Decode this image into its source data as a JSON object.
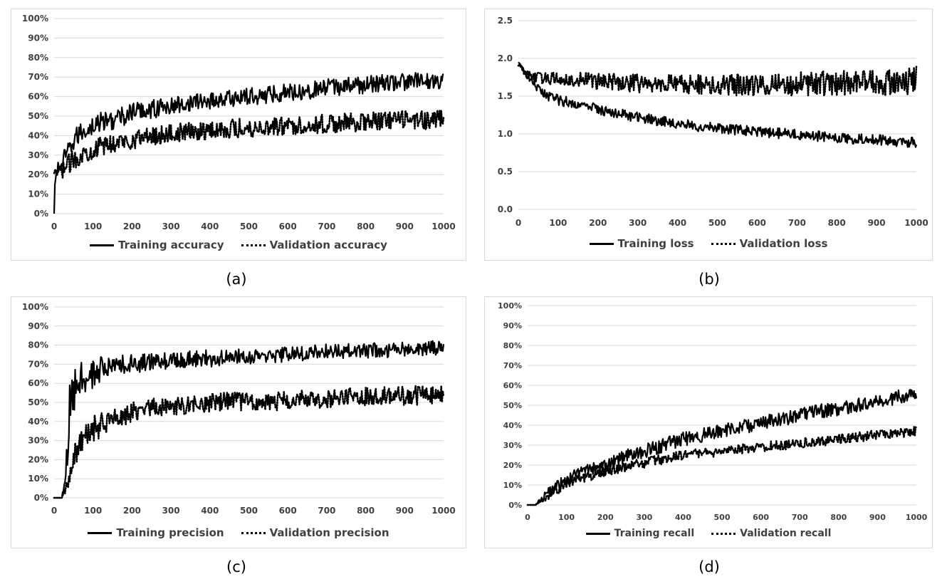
{
  "colors": {
    "line": "#000000",
    "grid": "#d9d9d9",
    "text": "#404040",
    "border": "#d9d9d9"
  },
  "panels": [
    {
      "id": "a",
      "caption": "(a)",
      "legend": {
        "train": "Training accuracy",
        "val": "Validation accuracy"
      },
      "y_tick_labels": [
        "0%",
        "10%",
        "20%",
        "30%",
        "40%",
        "50%",
        "60%",
        "70%",
        "80%",
        "90%",
        "100%"
      ],
      "x_tick_labels": [
        "0",
        "100",
        "200",
        "300",
        "400",
        "500",
        "600",
        "700",
        "800",
        "900",
        "1000"
      ]
    },
    {
      "id": "b",
      "caption": "(b)",
      "legend": {
        "train": "Training loss",
        "val": "Validation loss"
      },
      "y_tick_labels": [
        "0.0",
        "0.5",
        "1.0",
        "1.5",
        "2.0",
        "2.5"
      ],
      "x_tick_labels": [
        "0",
        "100",
        "200",
        "300",
        "400",
        "500",
        "600",
        "700",
        "800",
        "900",
        "1000"
      ]
    },
    {
      "id": "c",
      "caption": "(c)",
      "legend": {
        "train": "Training precision",
        "val": "Validation precision"
      },
      "y_tick_labels": [
        "0%",
        "10%",
        "20%",
        "30%",
        "40%",
        "50%",
        "60%",
        "70%",
        "80%",
        "90%",
        "100%"
      ],
      "x_tick_labels": [
        "0",
        "100",
        "200",
        "300",
        "400",
        "500",
        "600",
        "700",
        "800",
        "900",
        "1000"
      ]
    },
    {
      "id": "d",
      "caption": "(d)",
      "legend": {
        "train": "Training recall",
        "val": "Validation recall"
      },
      "y_tick_labels": [
        "0%",
        "10%",
        "20%",
        "30%",
        "40%",
        "50%",
        "60%",
        "70%",
        "80%",
        "90%",
        "100%"
      ],
      "x_tick_labels": [
        "0",
        "100",
        "200",
        "300",
        "400",
        "500",
        "600",
        "700",
        "800",
        "900",
        "1000"
      ]
    }
  ],
  "chart_data": [
    {
      "type": "line",
      "xlim": [
        0,
        1000
      ],
      "ylim": [
        0,
        1
      ],
      "grid": true,
      "legend_position": "bottom",
      "series": [
        {
          "name": "Training accuracy",
          "style": "solid",
          "x": [
            0,
            2,
            5,
            10,
            20,
            30,
            40,
            50,
            60,
            80,
            100,
            120,
            150,
            180,
            200,
            230,
            260,
            300,
            350,
            400,
            450,
            500,
            550,
            600,
            650,
            700,
            750,
            800,
            850,
            900,
            950,
            1000
          ],
          "y": [
            0.0,
            0.15,
            0.21,
            0.23,
            0.26,
            0.29,
            0.33,
            0.37,
            0.4,
            0.43,
            0.45,
            0.47,
            0.48,
            0.5,
            0.52,
            0.53,
            0.54,
            0.55,
            0.57,
            0.58,
            0.59,
            0.6,
            0.61,
            0.625,
            0.63,
            0.645,
            0.655,
            0.66,
            0.67,
            0.675,
            0.68,
            0.685
          ],
          "noise": [
            0,
            0,
            0.03,
            0.04,
            0.05,
            0.05,
            0.05,
            0.05,
            0.05,
            0.05,
            0.05,
            0.05,
            0.05,
            0.05,
            0.05,
            0.05,
            0.05,
            0.045,
            0.045,
            0.045,
            0.045,
            0.045,
            0.045,
            0.045,
            0.045,
            0.045,
            0.045,
            0.045,
            0.045,
            0.045,
            0.045,
            0.045
          ]
        },
        {
          "name": "Validation accuracy",
          "style": "dotted",
          "x": [
            0,
            10,
            20,
            40,
            60,
            100,
            150,
            200,
            250,
            300,
            350,
            400,
            450,
            500,
            550,
            600,
            650,
            700,
            750,
            800,
            850,
            900,
            950,
            1000
          ],
          "y": [
            0.2,
            0.21,
            0.22,
            0.26,
            0.29,
            0.33,
            0.36,
            0.38,
            0.4,
            0.41,
            0.42,
            0.43,
            0.435,
            0.44,
            0.445,
            0.45,
            0.455,
            0.46,
            0.465,
            0.47,
            0.475,
            0.48,
            0.48,
            0.485
          ],
          "noise": [
            0.02,
            0.03,
            0.04,
            0.05,
            0.05,
            0.05,
            0.05,
            0.05,
            0.05,
            0.05,
            0.05,
            0.05,
            0.05,
            0.05,
            0.05,
            0.05,
            0.05,
            0.05,
            0.05,
            0.05,
            0.05,
            0.05,
            0.05,
            0.05
          ]
        }
      ]
    },
    {
      "type": "line",
      "xlim": [
        0,
        1000
      ],
      "ylim": [
        0,
        2.5
      ],
      "grid": true,
      "legend_position": "bottom",
      "series": [
        {
          "name": "Training loss",
          "style": "solid",
          "x": [
            0,
            10,
            20,
            40,
            60,
            80,
            100,
            150,
            200,
            250,
            300,
            350,
            400,
            450,
            500,
            550,
            600,
            650,
            700,
            750,
            800,
            850,
            900,
            950,
            1000
          ],
          "y": [
            1.95,
            1.88,
            1.78,
            1.64,
            1.55,
            1.49,
            1.45,
            1.39,
            1.33,
            1.27,
            1.22,
            1.18,
            1.14,
            1.1,
            1.07,
            1.05,
            1.03,
            1.01,
            0.99,
            0.97,
            0.95,
            0.93,
            0.92,
            0.9,
            0.89
          ],
          "noise": [
            0,
            0.02,
            0.04,
            0.06,
            0.07,
            0.07,
            0.07,
            0.07,
            0.07,
            0.07,
            0.07,
            0.07,
            0.07,
            0.07,
            0.07,
            0.07,
            0.07,
            0.07,
            0.07,
            0.07,
            0.07,
            0.07,
            0.07,
            0.07,
            0.07
          ]
        },
        {
          "name": "Validation loss",
          "style": "dotted",
          "x": [
            0,
            10,
            20,
            40,
            60,
            100,
            150,
            200,
            300,
            400,
            500,
            600,
            700,
            800,
            900,
            1000
          ],
          "y": [
            1.92,
            1.86,
            1.8,
            1.75,
            1.74,
            1.73,
            1.72,
            1.7,
            1.67,
            1.65,
            1.65,
            1.65,
            1.66,
            1.67,
            1.68,
            1.7
          ],
          "noise": [
            0.02,
            0.04,
            0.06,
            0.07,
            0.08,
            0.09,
            0.1,
            0.11,
            0.12,
            0.13,
            0.14,
            0.15,
            0.16,
            0.17,
            0.18,
            0.2
          ]
        }
      ]
    },
    {
      "type": "line",
      "xlim": [
        0,
        1000
      ],
      "ylim": [
        0,
        1
      ],
      "grid": true,
      "legend_position": "bottom",
      "series": [
        {
          "name": "Training precision",
          "style": "solid",
          "x": [
            0,
            20,
            25,
            30,
            35,
            40,
            50,
            60,
            80,
            100,
            120,
            150,
            200,
            250,
            300,
            400,
            500,
            600,
            700,
            800,
            900,
            1000
          ],
          "y": [
            0.0,
            0.0,
            0.05,
            0.1,
            0.3,
            0.45,
            0.55,
            0.6,
            0.63,
            0.65,
            0.67,
            0.69,
            0.7,
            0.71,
            0.72,
            0.73,
            0.74,
            0.75,
            0.765,
            0.77,
            0.78,
            0.79
          ],
          "noise": [
            0,
            0,
            0.03,
            0.05,
            0.12,
            0.14,
            0.13,
            0.12,
            0.1,
            0.08,
            0.07,
            0.06,
            0.05,
            0.045,
            0.045,
            0.045,
            0.04,
            0.04,
            0.04,
            0.04,
            0.04,
            0.04
          ]
        },
        {
          "name": "Validation precision",
          "style": "dotted",
          "x": [
            0,
            20,
            30,
            40,
            50,
            60,
            80,
            100,
            150,
            200,
            250,
            300,
            400,
            500,
            600,
            700,
            800,
            900,
            1000
          ],
          "y": [
            0.0,
            0.0,
            0.05,
            0.12,
            0.2,
            0.25,
            0.31,
            0.36,
            0.41,
            0.45,
            0.47,
            0.48,
            0.5,
            0.505,
            0.51,
            0.52,
            0.53,
            0.535,
            0.54
          ],
          "noise": [
            0,
            0,
            0.03,
            0.06,
            0.07,
            0.07,
            0.07,
            0.07,
            0.06,
            0.05,
            0.05,
            0.05,
            0.05,
            0.05,
            0.05,
            0.05,
            0.05,
            0.05,
            0.05
          ]
        }
      ]
    },
    {
      "type": "line",
      "xlim": [
        0,
        1000
      ],
      "ylim": [
        0,
        1
      ],
      "grid": true,
      "legend_position": "bottom",
      "series": [
        {
          "name": "Training recall",
          "style": "solid",
          "x": [
            0,
            20,
            30,
            50,
            80,
            100,
            150,
            200,
            250,
            300,
            350,
            400,
            450,
            500,
            550,
            600,
            650,
            700,
            750,
            800,
            850,
            900,
            950,
            1000
          ],
          "y": [
            0.0,
            0.0,
            0.02,
            0.06,
            0.1,
            0.13,
            0.17,
            0.2,
            0.24,
            0.27,
            0.3,
            0.33,
            0.35,
            0.37,
            0.39,
            0.41,
            0.43,
            0.45,
            0.47,
            0.48,
            0.5,
            0.52,
            0.54,
            0.56
          ],
          "noise": [
            0,
            0,
            0.01,
            0.02,
            0.03,
            0.03,
            0.03,
            0.035,
            0.035,
            0.035,
            0.035,
            0.035,
            0.035,
            0.035,
            0.035,
            0.035,
            0.035,
            0.035,
            0.035,
            0.035,
            0.035,
            0.035,
            0.035,
            0.035
          ]
        },
        {
          "name": "Validation recall",
          "style": "dotted",
          "x": [
            0,
            20,
            30,
            50,
            80,
            100,
            150,
            200,
            250,
            300,
            350,
            400,
            450,
            500,
            550,
            600,
            650,
            700,
            750,
            800,
            850,
            900,
            950,
            1000
          ],
          "y": [
            0.0,
            0.0,
            0.01,
            0.04,
            0.08,
            0.11,
            0.14,
            0.17,
            0.19,
            0.21,
            0.23,
            0.25,
            0.26,
            0.27,
            0.28,
            0.29,
            0.3,
            0.31,
            0.32,
            0.33,
            0.34,
            0.35,
            0.36,
            0.37
          ],
          "noise": [
            0,
            0,
            0.01,
            0.02,
            0.025,
            0.025,
            0.025,
            0.025,
            0.025,
            0.025,
            0.025,
            0.025,
            0.025,
            0.025,
            0.025,
            0.025,
            0.025,
            0.025,
            0.025,
            0.025,
            0.025,
            0.025,
            0.025,
            0.025
          ]
        }
      ]
    }
  ]
}
